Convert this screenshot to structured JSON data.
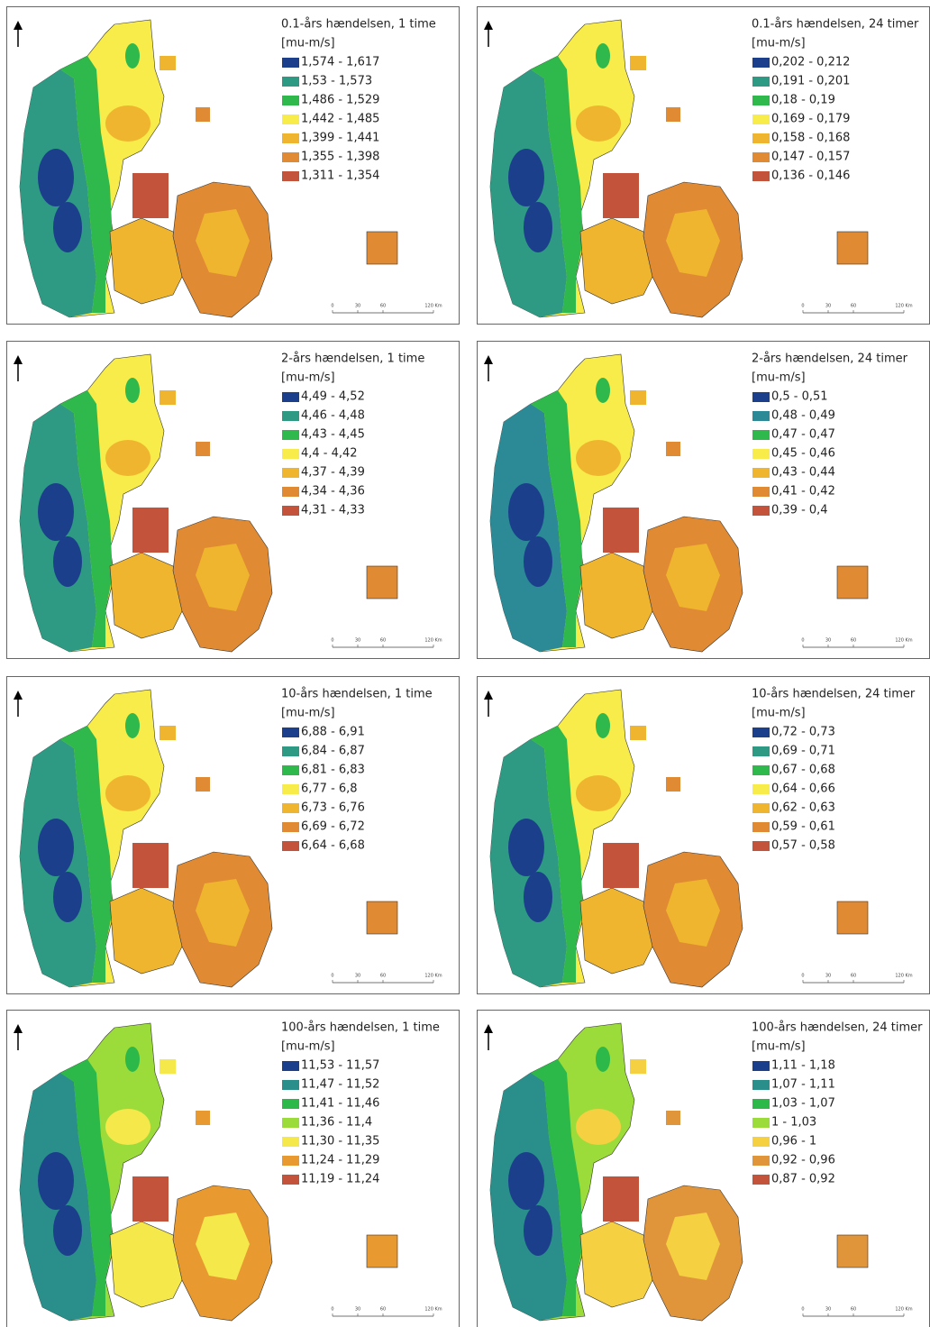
{
  "panels": [
    {
      "title": "0.1-års hændelsen, 1 time",
      "unit": "[mu-m/s]",
      "legend": [
        {
          "label": "1,574 - 1,617",
          "color": "#1c3f8c"
        },
        {
          "label": "1,53 - 1,573",
          "color": "#2e9a84"
        },
        {
          "label": "1,486 - 1,529",
          "color": "#2fb84c"
        },
        {
          "label": "1,442 - 1,485",
          "color": "#f7ec4a"
        },
        {
          "label": "1,399 - 1,441",
          "color": "#f0b52e"
        },
        {
          "label": "1,355 - 1,398",
          "color": "#e08a33"
        },
        {
          "label": "1,311 - 1,354",
          "color": "#c4533c"
        }
      ],
      "scale": [
        "0",
        "30",
        "60",
        "120 Km"
      ]
    },
    {
      "title": "0.1-års hændelsen, 24 timer",
      "unit": "[mu-m/s]",
      "legend": [
        {
          "label": "0,202 - 0,212",
          "color": "#1c3f8c"
        },
        {
          "label": "0,191 - 0,201",
          "color": "#2e9a84"
        },
        {
          "label": "0,18 - 0,19",
          "color": "#2fb84c"
        },
        {
          "label": "0,169 - 0,179",
          "color": "#f7ec4a"
        },
        {
          "label": "0,158 - 0,168",
          "color": "#f0b52e"
        },
        {
          "label": "0,147 - 0,157",
          "color": "#e08a33"
        },
        {
          "label": "0,136 - 0,146",
          "color": "#c4533c"
        }
      ],
      "scale": [
        "0",
        "30",
        "60",
        "120 Km"
      ]
    },
    {
      "title": "2-års hændelsen, 1 time",
      "unit": "[mu-m/s]",
      "legend": [
        {
          "label": "4,49 - 4,52",
          "color": "#1c3f8c"
        },
        {
          "label": "4,46 - 4,48",
          "color": "#2e9a84"
        },
        {
          "label": "4,43 - 4,45",
          "color": "#2fb84c"
        },
        {
          "label": "4,4 - 4,42",
          "color": "#f7ec4a"
        },
        {
          "label": "4,37 - 4,39",
          "color": "#f0b52e"
        },
        {
          "label": "4,34 - 4,36",
          "color": "#e08a33"
        },
        {
          "label": "4,31 - 4,33",
          "color": "#c4533c"
        }
      ],
      "scale": [
        "0",
        "30",
        "60",
        "120 Km"
      ]
    },
    {
      "title": "2-års hændelsen, 24 timer",
      "unit": "[mu-m/s]",
      "legend": [
        {
          "label": "0,5 - 0,51",
          "color": "#1c3f8c"
        },
        {
          "label": "0,48 - 0,49",
          "color": "#2b8a96"
        },
        {
          "label": "0,47 - 0,47",
          "color": "#2fb84c"
        },
        {
          "label": "0,45 - 0,46",
          "color": "#f7ec4a"
        },
        {
          "label": "0,43 - 0,44",
          "color": "#f0b52e"
        },
        {
          "label": "0,41 - 0,42",
          "color": "#e08a33"
        },
        {
          "label": "0,39 - 0,4",
          "color": "#c4533c"
        }
      ],
      "scale": [
        "0",
        "30",
        "60",
        "120 Km"
      ]
    },
    {
      "title": "10-års hændelsen, 1 time",
      "unit": "[mu-m/s]",
      "legend": [
        {
          "label": "6,88 - 6,91",
          "color": "#1c3f8c"
        },
        {
          "label": "6,84 - 6,87",
          "color": "#2e9a84"
        },
        {
          "label": "6,81 - 6,83",
          "color": "#2fb84c"
        },
        {
          "label": "6,77 - 6,8",
          "color": "#f7ec4a"
        },
        {
          "label": "6,73 - 6,76",
          "color": "#f0b52e"
        },
        {
          "label": "6,69 - 6,72",
          "color": "#e08a33"
        },
        {
          "label": "6,64 - 6,68",
          "color": "#c4533c"
        }
      ],
      "scale": [
        "0",
        "30",
        "60",
        "120 Km"
      ]
    },
    {
      "title": "10-års hændelsen, 24 timer",
      "unit": "[mu-m/s]",
      "legend": [
        {
          "label": "0,72 - 0,73",
          "color": "#1c3f8c"
        },
        {
          "label": "0,69 - 0,71",
          "color": "#2e9a84"
        },
        {
          "label": "0,67 - 0,68",
          "color": "#2fb84c"
        },
        {
          "label": "0,64 - 0,66",
          "color": "#f7ec4a"
        },
        {
          "label": "0,62 - 0,63",
          "color": "#f0b52e"
        },
        {
          "label": "0,59 - 0,61",
          "color": "#e08a33"
        },
        {
          "label": "0,57 - 0,58",
          "color": "#c4533c"
        }
      ],
      "scale": [
        "0",
        "30",
        "60",
        "120 Km"
      ]
    },
    {
      "title": "100-års hændelsen, 1 time",
      "unit": "[mu-m/s]",
      "legend": [
        {
          "label": "11,53 - 11,57",
          "color": "#1c3f8c"
        },
        {
          "label": "11,47 - 11,52",
          "color": "#2a8f8a"
        },
        {
          "label": "11,41 - 11,46",
          "color": "#2db84a"
        },
        {
          "label": "11,36 - 11,4",
          "color": "#9bdc3a"
        },
        {
          "label": "11,30 - 11,35",
          "color": "#f5e84a"
        },
        {
          "label": "11,24 - 11,29",
          "color": "#e89a30"
        },
        {
          "label": "11,19 - 11,24",
          "color": "#c4533c"
        }
      ],
      "scale": [
        "0",
        "30",
        "60",
        "120 Km"
      ]
    },
    {
      "title": "100-års hændelsen, 24 timer",
      "unit": "[mu-m/s]",
      "legend": [
        {
          "label": "1,11 - 1,18",
          "color": "#1c3f8c"
        },
        {
          "label": "1,07 - 1,11",
          "color": "#2a8f8a"
        },
        {
          "label": "1,03 - 1,07",
          "color": "#2db84a"
        },
        {
          "label": "1 - 1,03",
          "color": "#9bdc3a"
        },
        {
          "label": "0,96 - 1",
          "color": "#f5d040"
        },
        {
          "label": "0,92 - 0,96",
          "color": "#e0953a"
        },
        {
          "label": "0,87 - 0,92",
          "color": "#c4533c"
        }
      ],
      "scale": [
        "0",
        "30",
        "60",
        "120 Km"
      ]
    }
  ]
}
